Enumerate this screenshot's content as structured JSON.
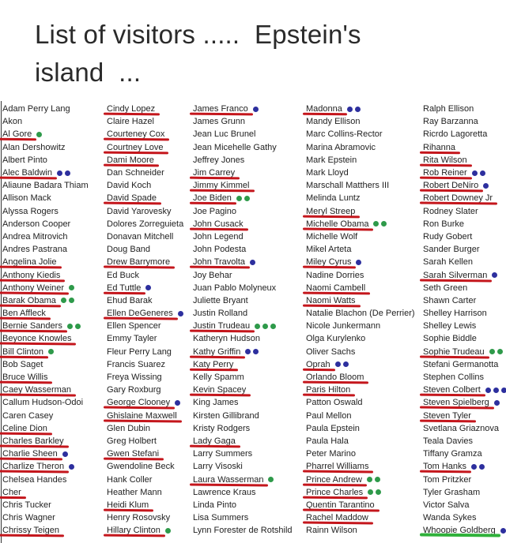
{
  "title_line1": "List of visitors .....  Epstein's",
  "title_line2": "island  ...",
  "colors": {
    "underline_red": "#c4161c",
    "underline_green": "#2fb13a",
    "dot_green": "#2e9a4a",
    "dot_blue": "#2d2f9e"
  },
  "columns": [
    [
      {
        "name": "Adam Perry Lang"
      },
      {
        "name": "Akon"
      },
      {
        "name": "Al Gore",
        "underline": "red",
        "dots": [
          "green"
        ]
      },
      {
        "name": "Alan Dershowitz"
      },
      {
        "name": "Albert Pinto"
      },
      {
        "name": "Alec Baldwin",
        "underline": "red",
        "dots": [
          "blue",
          "blue"
        ]
      },
      {
        "name": "Aliaune Badara Thiam"
      },
      {
        "name": "Allison Mack"
      },
      {
        "name": "Alyssa Rogers"
      },
      {
        "name": "Anderson Cooper"
      },
      {
        "name": "Andrea Mitrovich"
      },
      {
        "name": "Andres Pastrana"
      },
      {
        "name": "Angelina Jolie",
        "underline": "red"
      },
      {
        "name": "Anthony Kiedis",
        "underline": "red"
      },
      {
        "name": "Anthony Weiner",
        "underline": "red",
        "dots": [
          "green"
        ]
      },
      {
        "name": "Barak Obama",
        "underline": "red",
        "dots": [
          "green",
          "green"
        ]
      },
      {
        "name": "Ben Affleck",
        "underline": "red"
      },
      {
        "name": "Bernie Sanders",
        "underline": "red",
        "dots": [
          "green",
          "green"
        ]
      },
      {
        "name": "Beyonce Knowles",
        "underline": "red"
      },
      {
        "name": "Bill Clinton",
        "underline": "red",
        "dots": [
          "green"
        ]
      },
      {
        "name": "Bob Saget"
      },
      {
        "name": "Bruce Willis",
        "underline": "red"
      },
      {
        "name": "Caey Wasserman",
        "underline": "red"
      },
      {
        "name": "Callum Hudson-Odoi"
      },
      {
        "name": "Caren Casey"
      },
      {
        "name": "Celine Dion",
        "underline": "red"
      },
      {
        "name": "Charles Barkley",
        "underline": "red"
      },
      {
        "name": "Charlie Sheen",
        "underline": "red",
        "dots": [
          "blue"
        ]
      },
      {
        "name": "Charlize Theron",
        "underline": "red",
        "dots": [
          "blue"
        ]
      },
      {
        "name": "Chelsea Handes"
      },
      {
        "name": "Cher",
        "underline": "red"
      },
      {
        "name": "Chris Tucker"
      },
      {
        "name": "Chris Wagner"
      },
      {
        "name": "Chrissy Teigen",
        "underline": "red"
      }
    ],
    [
      {
        "name": "Cindy Lopez",
        "underline": "red"
      },
      {
        "name": "Claire Hazel"
      },
      {
        "name": "Courteney Cox",
        "underline": "red"
      },
      {
        "name": "Courtney Love",
        "underline": "red"
      },
      {
        "name": "Dami Moore",
        "underline": "red"
      },
      {
        "name": "Dan Schneider"
      },
      {
        "name": "David Koch"
      },
      {
        "name": "David Spade",
        "underline": "red"
      },
      {
        "name": "David Yarovesky"
      },
      {
        "name": "Dolores Zorreguieta"
      },
      {
        "name": "Donavan Mitchell"
      },
      {
        "name": "Doug Band"
      },
      {
        "name": "Drew Barrymore",
        "underline": "red"
      },
      {
        "name": "Ed Buck"
      },
      {
        "name": "Ed Tuttle",
        "underline": "red",
        "dots": [
          "blue"
        ]
      },
      {
        "name": "Ehud Barak"
      },
      {
        "name": "Ellen DeGeneres",
        "underline": "red",
        "dots": [
          "blue"
        ]
      },
      {
        "name": "Ellen Spencer"
      },
      {
        "name": "Emmy Tayler"
      },
      {
        "name": "Fleur Perry Lang"
      },
      {
        "name": "Francis Suarez"
      },
      {
        "name": "Freya Wissing"
      },
      {
        "name": "Gary Roxburg"
      },
      {
        "name": "George Clooney",
        "underline": "red",
        "dots": [
          "blue"
        ]
      },
      {
        "name": "Ghislaine Maxwell",
        "underline": "red"
      },
      {
        "name": "Glen Dubin"
      },
      {
        "name": "Greg Holbert"
      },
      {
        "name": "Gwen Stefani",
        "underline": "red"
      },
      {
        "name": "Gwendoline Beck"
      },
      {
        "name": "Hank Coller"
      },
      {
        "name": "Heather Mann"
      },
      {
        "name": "Heidi Klum",
        "underline": "red"
      },
      {
        "name": "Henry Rosovsky"
      },
      {
        "name": "Hillary Clinton",
        "underline": "red",
        "dots": [
          "green"
        ]
      }
    ],
    [
      {
        "name": "James Franco",
        "underline": "red",
        "dots": [
          "blue"
        ]
      },
      {
        "name": "James Grunn"
      },
      {
        "name": "Jean Luc Brunel"
      },
      {
        "name": "Jean Micehelle Gathy"
      },
      {
        "name": "Jeffrey Jones"
      },
      {
        "name": "Jim Carrey",
        "underline": "red"
      },
      {
        "name": "Jimmy Kimmel",
        "underline": "red"
      },
      {
        "name": "Joe Biden",
        "underline": "red",
        "dots": [
          "green",
          "green"
        ]
      },
      {
        "name": "Joe Pagino"
      },
      {
        "name": "John Cusack",
        "underline": "red"
      },
      {
        "name": "John Legend"
      },
      {
        "name": "John Podesta"
      },
      {
        "name": "John Travolta",
        "underline": "red",
        "dots": [
          "blue"
        ]
      },
      {
        "name": "Joy Behar"
      },
      {
        "name": "Juan Pablo Molyneux"
      },
      {
        "name": "Juliette Bryant"
      },
      {
        "name": "Justin Rolland"
      },
      {
        "name": "Justin Trudeau",
        "underline": "red",
        "dots": [
          "green",
          "green",
          "green"
        ]
      },
      {
        "name": "Katheryn Hudson"
      },
      {
        "name": "Kathy Griffin",
        "underline": "red",
        "dots": [
          "blue",
          "blue"
        ]
      },
      {
        "name": "Katy Perry",
        "underline": "red"
      },
      {
        "name": "Kelly Spamm"
      },
      {
        "name": "Kevin Spacey",
        "underline": "red"
      },
      {
        "name": "King James"
      },
      {
        "name": "Kirsten Gillibrand"
      },
      {
        "name": "Kristy Rodgers"
      },
      {
        "name": "Lady Gaga",
        "underline": "red"
      },
      {
        "name": "Larry Summers"
      },
      {
        "name": "Larry Visoski"
      },
      {
        "name": "Laura Wasserman",
        "underline": "red",
        "dots": [
          "green"
        ]
      },
      {
        "name": "Lawrence Kraus"
      },
      {
        "name": "Linda Pinto"
      },
      {
        "name": "Lisa Summers"
      },
      {
        "name": "Lynn Forester de Rotshild"
      }
    ],
    [
      {
        "name": "Madonna",
        "underline": "red",
        "dots": [
          "blue",
          "blue"
        ]
      },
      {
        "name": "Mandy Ellison"
      },
      {
        "name": "Marc Collins-Rector"
      },
      {
        "name": "Marina Abramovic"
      },
      {
        "name": "Mark Epstein"
      },
      {
        "name": "Mark Lloyd"
      },
      {
        "name": "Marschall Matthers III"
      },
      {
        "name": "Melinda Luntz"
      },
      {
        "name": "Meryl Streep",
        "underline": "red"
      },
      {
        "name": "Michelle Obama",
        "underline": "red",
        "dots": [
          "green",
          "green"
        ]
      },
      {
        "name": "Michelle Wolf"
      },
      {
        "name": "Mikel Arteta"
      },
      {
        "name": "Miley Cyrus",
        "underline": "red",
        "dots": [
          "blue"
        ]
      },
      {
        "name": "Nadine Dorries"
      },
      {
        "name": "Naomi Cambell",
        "underline": "red"
      },
      {
        "name": "Naomi Watts",
        "underline": "red"
      },
      {
        "name": "Natalie Blachon (De Perrier)"
      },
      {
        "name": "Nicole Junkermann"
      },
      {
        "name": "Olga Kurylenko"
      },
      {
        "name": "Oliver Sachs"
      },
      {
        "name": "Oprah",
        "underline": "red",
        "dots": [
          "blue",
          "blue"
        ]
      },
      {
        "name": "Orlando Bloom",
        "underline": "red"
      },
      {
        "name": "Paris Hilton",
        "underline": "red"
      },
      {
        "name": "Patton Oswald"
      },
      {
        "name": "Paul Mellon"
      },
      {
        "name": "Paula Epstein"
      },
      {
        "name": "Paula Hala"
      },
      {
        "name": "Peter Marino"
      },
      {
        "name": "Pharrel Williams",
        "underline": "red"
      },
      {
        "name": "Prince Andrew",
        "underline": "red",
        "dots": [
          "green",
          "green"
        ]
      },
      {
        "name": "Prince Charles",
        "underline": "red",
        "dots": [
          "green",
          "green"
        ]
      },
      {
        "name": "Quentin Tarantino",
        "underline": "red"
      },
      {
        "name": "Rachel Maddow",
        "underline": "red"
      },
      {
        "name": "Rainn Wilson"
      }
    ],
    [
      {
        "name": "Ralph Ellison"
      },
      {
        "name": "Ray Barzanna"
      },
      {
        "name": "Ricrdo Lagoretta"
      },
      {
        "name": "Rihanna",
        "underline": "red"
      },
      {
        "name": "Rita Wilson",
        "underline": "red"
      },
      {
        "name": "Rob Reiner",
        "underline": "red",
        "dots": [
          "blue",
          "blue"
        ]
      },
      {
        "name": "Robert DeNiro",
        "underline": "red",
        "dots": [
          "blue"
        ]
      },
      {
        "name": "Robert Downey Jr",
        "underline": "red"
      },
      {
        "name": "Rodney Slater"
      },
      {
        "name": "Ron Burke"
      },
      {
        "name": "Rudy Gobert"
      },
      {
        "name": "Sander Burger"
      },
      {
        "name": "Sarah Kellen"
      },
      {
        "name": "Sarah Silverman",
        "underline": "red",
        "dots": [
          "blue"
        ]
      },
      {
        "name": "Seth Green"
      },
      {
        "name": "Shawn Carter"
      },
      {
        "name": "Shelley Harrison"
      },
      {
        "name": "Shelley Lewis"
      },
      {
        "name": "Sophie Biddle"
      },
      {
        "name": "Sophie Trudeau",
        "underline": "red",
        "dots": [
          "green",
          "green"
        ]
      },
      {
        "name": "Stefani Germanotta"
      },
      {
        "name": "Stephen Collins"
      },
      {
        "name": "Steven Colbert",
        "underline": "red",
        "dots": [
          "blue",
          "blue",
          "blue"
        ]
      },
      {
        "name": "Steven Spielberg",
        "underline": "red",
        "dots": [
          "blue"
        ]
      },
      {
        "name": "Steven Tyler",
        "underline": "red"
      },
      {
        "name": "Svetlana Griaznova"
      },
      {
        "name": "Teala Davies"
      },
      {
        "name": "Tiffany Gramza"
      },
      {
        "name": "Tom Hanks",
        "underline": "red",
        "dots": [
          "blue",
          "blue"
        ]
      },
      {
        "name": "Tom Pritzker"
      },
      {
        "name": "Tyler Grasham"
      },
      {
        "name": "Victor Salva"
      },
      {
        "name": "Wanda Sykes"
      },
      {
        "name": "Whoopie Goldberg",
        "underline": "green",
        "dots": [
          "blue",
          "blue"
        ]
      }
    ]
  ]
}
